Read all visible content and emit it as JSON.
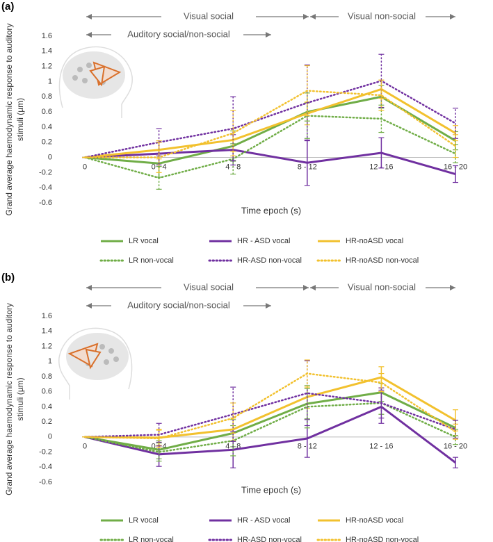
{
  "chart_data": [
    {
      "type": "line",
      "panel_label": "(a)",
      "annotations": [
        "Visual social",
        "Visual non-social",
        "Auditory social/non-social"
      ],
      "xlabel": "Time epoch  (s)",
      "ylabel": [
        "Grand average haemodynamic response to auditory",
        "stimuli (µm)"
      ],
      "categories": [
        "0",
        "0 - 4",
        "4 - 8",
        "8 - 12",
        "12 - 16",
        "16 - 20"
      ],
      "ylim": [
        -0.6,
        1.6
      ],
      "yticks": [
        -0.6,
        -0.4,
        -0.2,
        0,
        0.2,
        0.4,
        0.6,
        0.8,
        1,
        1.2,
        1.4,
        1.6
      ],
      "series": [
        {
          "name": "LR vocal",
          "color": "#70ad47",
          "style": "solid",
          "values": [
            0,
            -0.08,
            0.15,
            0.6,
            0.8,
            0.22
          ],
          "errors": [
            0,
            0.18,
            0.2,
            0.12,
            0.15,
            0.12
          ]
        },
        {
          "name": "HR - ASD vocal",
          "color": "#7030a0",
          "style": "solid",
          "values": [
            0,
            0.05,
            0.1,
            -0.07,
            0.06,
            -0.22
          ],
          "errors": [
            0,
            0.15,
            0.2,
            0.3,
            0.2,
            0.11
          ]
        },
        {
          "name": "HR-noASD vocal",
          "color": "#f2c12e",
          "style": "solid",
          "values": [
            0,
            0.1,
            0.23,
            0.58,
            0.9,
            0.32
          ],
          "errors": [
            0,
            0.12,
            0.15,
            0.15,
            0.12,
            0.1
          ]
        },
        {
          "name": "LR non-vocal",
          "color": "#70ad47",
          "style": "dotted",
          "values": [
            0,
            -0.27,
            -0.02,
            0.55,
            0.51,
            0.05
          ],
          "errors": [
            0,
            0.15,
            0.2,
            0.3,
            0.18,
            0.12
          ]
        },
        {
          "name": "HR-ASD non-vocal",
          "color": "#7030a0",
          "style": "dotted",
          "values": [
            0,
            0.2,
            0.38,
            0.72,
            1.01,
            0.45
          ],
          "errors": [
            0,
            0.18,
            0.42,
            0.5,
            0.35,
            0.2
          ]
        },
        {
          "name": "HR-noASD non-vocal",
          "color": "#f2c12e",
          "style": "dotted",
          "values": [
            0,
            0,
            0.32,
            0.88,
            0.82,
            0.15
          ],
          "errors": [
            0,
            0.2,
            0.3,
            0.33,
            0.2,
            0.15
          ]
        }
      ]
    },
    {
      "type": "line",
      "panel_label": "(b)",
      "annotations": [
        "Visual social",
        "Visual non-social",
        "Auditory social/non-social"
      ],
      "xlabel": "Time epoch  (s)",
      "ylabel": [
        "Grand average haemodynamic response to auditory",
        "stimuli (µm)"
      ],
      "categories": [
        "0",
        "0 - 4",
        "4 - 8",
        "8 - 12",
        "12 - 16",
        "16 - 20"
      ],
      "ylim": [
        -0.6,
        1.6
      ],
      "yticks": [
        -0.6,
        -0.4,
        -0.2,
        0,
        0.2,
        0.4,
        0.6,
        0.8,
        1,
        1.2,
        1.4,
        1.6
      ],
      "series": [
        {
          "name": "LR vocal",
          "color": "#70ad47",
          "style": "solid",
          "values": [
            0,
            -0.17,
            0.05,
            0.44,
            0.59,
            0.12
          ],
          "errors": [
            0,
            0.12,
            0.18,
            0.2,
            0.12,
            0.1
          ]
        },
        {
          "name": "HR - ASD vocal",
          "color": "#7030a0",
          "style": "solid",
          "values": [
            0,
            -0.23,
            -0.17,
            -0.02,
            0.4,
            -0.34
          ],
          "errors": [
            0,
            0.16,
            0.24,
            0.25,
            0.22,
            0.07
          ]
        },
        {
          "name": "HR-noASD vocal",
          "color": "#f2c12e",
          "style": "solid",
          "values": [
            0,
            -0.01,
            0.1,
            0.53,
            0.79,
            0.22
          ],
          "errors": [
            0,
            0.1,
            0.15,
            0.15,
            0.14,
            0.14
          ]
        },
        {
          "name": "LR non-vocal",
          "color": "#70ad47",
          "style": "dotted",
          "values": [
            0,
            -0.2,
            -0.05,
            0.4,
            0.45,
            0.0
          ],
          "errors": [
            0,
            0.12,
            0.2,
            0.28,
            0.15,
            0.1
          ]
        },
        {
          "name": "HR-ASD non-vocal",
          "color": "#7030a0",
          "style": "dotted",
          "values": [
            0,
            0.03,
            0.3,
            0.58,
            0.45,
            0.1
          ],
          "errors": [
            0,
            0.15,
            0.36,
            0.43,
            0.2,
            0.12
          ]
        },
        {
          "name": "HR-noASD non-vocal",
          "color": "#f2c12e",
          "style": "dotted",
          "values": [
            0,
            -0.02,
            0.25,
            0.84,
            0.72,
            0.07
          ],
          "errors": [
            0,
            0.12,
            0.2,
            0.18,
            0.12,
            0.1
          ]
        }
      ]
    }
  ]
}
